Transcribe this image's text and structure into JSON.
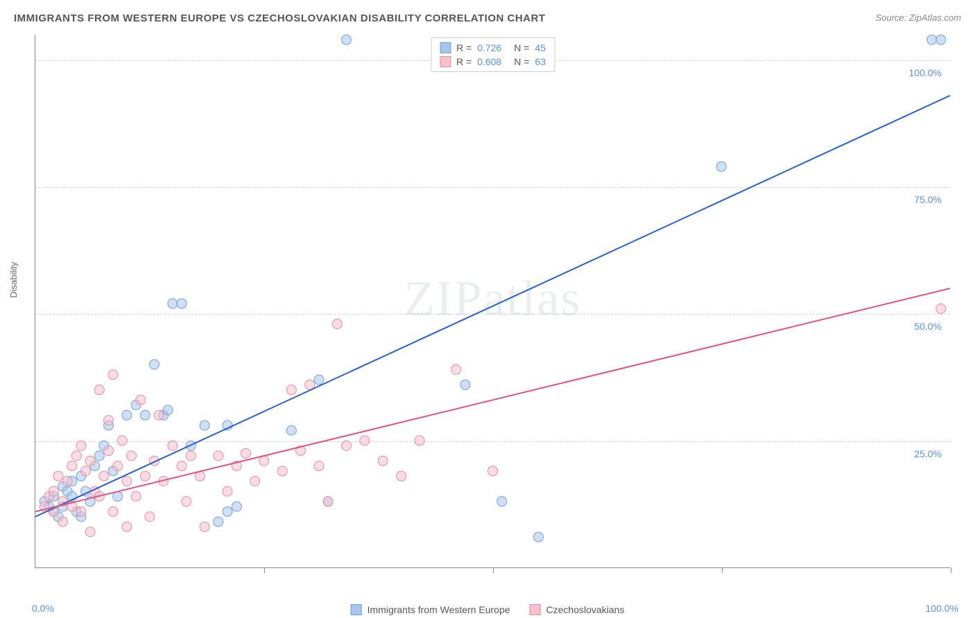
{
  "header": {
    "title": "IMMIGRANTS FROM WESTERN EUROPE VS CZECHOSLOVAKIAN DISABILITY CORRELATION CHART",
    "source": "Source: ZipAtlas.com"
  },
  "ylabel": "Disability",
  "watermark": "ZIPatlas",
  "chart": {
    "type": "scatter",
    "xlim": [
      0,
      100
    ],
    "ylim": [
      0,
      105
    ],
    "x_ticks": [
      0,
      25,
      50,
      75,
      100
    ],
    "x_tick_labels": [
      "0.0%",
      "",
      "",
      "",
      "100.0%"
    ],
    "y_ticks": [
      25,
      50,
      75,
      100
    ],
    "y_tick_labels": [
      "25.0%",
      "50.0%",
      "75.0%",
      "100.0%"
    ],
    "grid_color": "#d8d8d8",
    "axis_color": "#888888",
    "background_color": "#ffffff",
    "marker_radius": 7,
    "marker_opacity": 0.55,
    "line_width": 2,
    "series": [
      {
        "name": "Immigrants from Western Europe",
        "fill_color": "#a9c5ea",
        "stroke_color": "#6f9fd8",
        "line_color": "#2a5fca",
        "R": "0.726",
        "N": "45",
        "trend": {
          "x1": 0,
          "y1": 10,
          "x2": 100,
          "y2": 93
        },
        "points": [
          [
            1,
            13
          ],
          [
            1.5,
            12
          ],
          [
            2,
            11
          ],
          [
            2,
            14
          ],
          [
            2.5,
            10
          ],
          [
            3,
            12
          ],
          [
            3,
            16
          ],
          [
            3.5,
            15
          ],
          [
            4,
            14
          ],
          [
            4,
            17
          ],
          [
            4.5,
            11
          ],
          [
            5,
            18
          ],
          [
            5,
            10
          ],
          [
            5.5,
            15
          ],
          [
            6,
            13
          ],
          [
            6.5,
            20
          ],
          [
            7,
            22
          ],
          [
            7.5,
            24
          ],
          [
            8,
            28
          ],
          [
            8.5,
            19
          ],
          [
            9,
            14
          ],
          [
            10,
            30
          ],
          [
            11,
            32
          ],
          [
            12,
            30
          ],
          [
            13,
            40
          ],
          [
            14,
            30
          ],
          [
            14.5,
            31
          ],
          [
            15,
            52
          ],
          [
            16,
            52
          ],
          [
            17,
            24
          ],
          [
            18.5,
            28
          ],
          [
            20,
            9
          ],
          [
            21,
            11
          ],
          [
            21,
            28
          ],
          [
            22,
            12
          ],
          [
            28,
            27
          ],
          [
            31,
            37
          ],
          [
            32,
            13
          ],
          [
            34,
            104
          ],
          [
            47,
            36
          ],
          [
            51,
            13
          ],
          [
            55,
            6
          ],
          [
            75,
            79
          ],
          [
            98,
            104
          ],
          [
            99,
            104
          ]
        ]
      },
      {
        "name": "Czechoslovakians",
        "fill_color": "#f4c1cc",
        "stroke_color": "#e88aa2",
        "line_color": "#e0527a",
        "R": "0.608",
        "N": "63",
        "trend": {
          "x1": 0,
          "y1": 11,
          "x2": 100,
          "y2": 55
        },
        "points": [
          [
            1,
            12
          ],
          [
            1.5,
            14
          ],
          [
            2,
            11
          ],
          [
            2,
            15
          ],
          [
            2.5,
            18
          ],
          [
            3,
            13
          ],
          [
            3,
            9
          ],
          [
            3.5,
            17
          ],
          [
            4,
            20
          ],
          [
            4,
            12
          ],
          [
            4.5,
            22
          ],
          [
            5,
            11
          ],
          [
            5,
            24
          ],
          [
            5.5,
            19
          ],
          [
            6,
            7
          ],
          [
            6,
            21
          ],
          [
            6.5,
            15
          ],
          [
            7,
            14
          ],
          [
            7,
            35
          ],
          [
            7.5,
            18
          ],
          [
            8,
            23
          ],
          [
            8,
            29
          ],
          [
            8.5,
            11
          ],
          [
            8.5,
            38
          ],
          [
            9,
            20
          ],
          [
            9.5,
            25
          ],
          [
            10,
            8
          ],
          [
            10,
            17
          ],
          [
            10.5,
            22
          ],
          [
            11,
            14
          ],
          [
            11.5,
            33
          ],
          [
            12,
            18
          ],
          [
            12.5,
            10
          ],
          [
            13,
            21
          ],
          [
            13.5,
            30
          ],
          [
            14,
            17
          ],
          [
            15,
            24
          ],
          [
            16,
            20
          ],
          [
            16.5,
            13
          ],
          [
            17,
            22
          ],
          [
            18,
            18
          ],
          [
            18.5,
            8
          ],
          [
            20,
            22
          ],
          [
            21,
            15
          ],
          [
            22,
            20
          ],
          [
            23,
            22.5
          ],
          [
            24,
            17
          ],
          [
            25,
            21
          ],
          [
            27,
            19
          ],
          [
            28,
            35
          ],
          [
            29,
            23
          ],
          [
            30,
            36
          ],
          [
            31,
            20
          ],
          [
            32,
            13
          ],
          [
            33,
            48
          ],
          [
            34,
            24
          ],
          [
            36,
            25
          ],
          [
            38,
            21
          ],
          [
            40,
            18
          ],
          [
            42,
            25
          ],
          [
            46,
            39
          ],
          [
            50,
            19
          ],
          [
            99,
            51
          ]
        ]
      }
    ]
  },
  "legend_bottom": [
    {
      "label": "Immigrants from Western Europe",
      "fill": "#a9c5ea",
      "stroke": "#6f9fd8"
    },
    {
      "label": "Czechoslovakians",
      "fill": "#f4c1cc",
      "stroke": "#e88aa2"
    }
  ]
}
